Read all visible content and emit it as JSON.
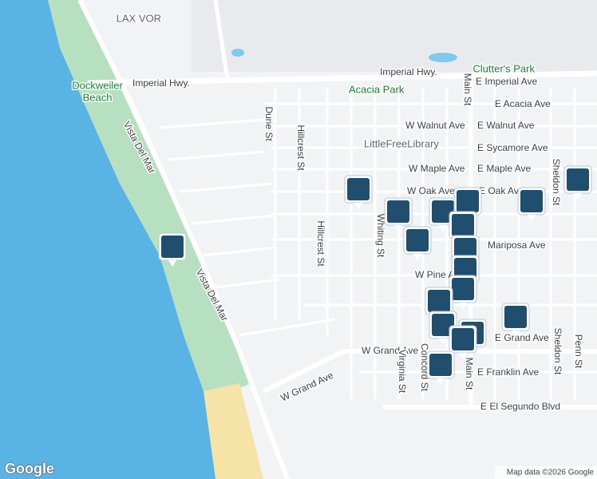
{
  "places": [
    "LAX VOR",
    "Dockweiler",
    "Beach",
    "Clutter's Park",
    "Acacia Park",
    "LittleFreeLibrary"
  ],
  "streets": [
    "Imperial Hwy.",
    "Imperial Hwy.",
    "E Imperial Ave",
    "E Acacia Ave",
    "W Walnut Ave",
    "E Walnut Ave",
    "E Sycamore Ave",
    "W Maple Ave",
    "E Maple Ave",
    "W Oak Ave",
    "E Oak Ave",
    "Mariposa Ave",
    "W Pine Ave",
    "W Grand Ave",
    "E Grand Ave",
    "E Franklin Ave",
    "E El Segundo Blvd",
    "W Grand Ave",
    "Dune St",
    "Hillcrest St",
    "Hillcrest St",
    "Whiting St",
    "Virginia St",
    "Concord St",
    "Main St",
    "Main St",
    "Sheldon St",
    "Sheldon St",
    "Penn St",
    "Vista Del Mar",
    "Vista Del Mar"
  ],
  "footer": {
    "logo": "Google",
    "attribution": "Map data ©2026 Google"
  }
}
